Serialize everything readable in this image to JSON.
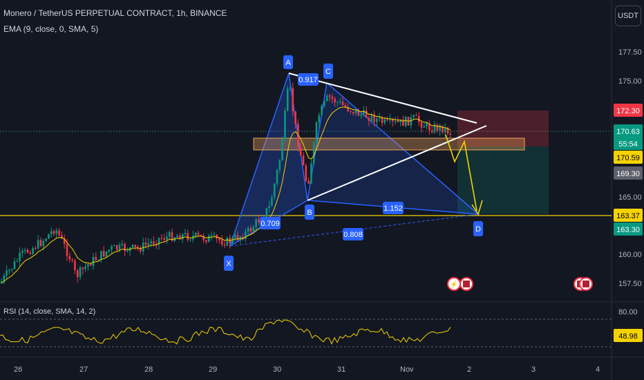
{
  "header": {
    "title": "Monero / TetherUS PERPETUAL CONTRACT, 1h, BINANCE",
    "ema_label": "EMA (9, close, 0, SMA, 5)",
    "rsi_label": "RSI (14, close, SMA, 14, 2)",
    "currency": "USDT"
  },
  "price_axis": {
    "ticks": [
      "177.50",
      "175.00",
      "165.00",
      "160.00",
      "157.50"
    ],
    "rsi_ticks": [
      "80.00"
    ]
  },
  "price_labels": [
    {
      "text": "172.30",
      "color": "#f23645",
      "fg": "#ffffff"
    },
    {
      "text": "170.63",
      "color": "#089981",
      "fg": "#ffffff"
    },
    {
      "text": "55:54",
      "color": "#089981",
      "fg": "#ffffff"
    },
    {
      "text": "170.59",
      "color": "#f5d300",
      "fg": "#000000"
    },
    {
      "text": "169.30",
      "color": "#5d606b",
      "fg": "#ffffff"
    },
    {
      "text": "163.37",
      "color": "#f5d300",
      "fg": "#000000"
    },
    {
      "text": "163.30",
      "color": "#089981",
      "fg": "#ffffff"
    },
    {
      "text": "48.98",
      "color": "#f5d300",
      "fg": "#000000"
    }
  ],
  "time_axis": {
    "labels": [
      "26",
      "27",
      "28",
      "29",
      "30",
      "31",
      "Nov",
      "2",
      "3",
      "4"
    ]
  },
  "pattern": {
    "points": [
      "X",
      "A",
      "B",
      "C",
      "D"
    ],
    "ratios": [
      "0.917",
      "0.709",
      "1.152",
      "0.808"
    ]
  },
  "chart_data": {
    "type": "candlestick",
    "title": "Monero / TetherUS PERPETUAL CONTRACT, 1h, BINANCE",
    "ylim": [
      156,
      179
    ],
    "grid": false,
    "indicators": [
      "EMA (9, close, 0, SMA, 5)",
      "RSI (14, close, SMA, 14, 2)"
    ],
    "last_price": 170.63,
    "xabcd_points": [
      {
        "label": "X",
        "price": 160.6
      },
      {
        "label": "A",
        "price": 175.6
      },
      {
        "label": "B",
        "price": 164.2
      },
      {
        "label": "C",
        "price": 174.9
      },
      {
        "label": "D",
        "price": 163.4
      }
    ],
    "support_line": 163.37,
    "zone": [
      169.9,
      170.9
    ],
    "rsi_value": 48.98
  }
}
